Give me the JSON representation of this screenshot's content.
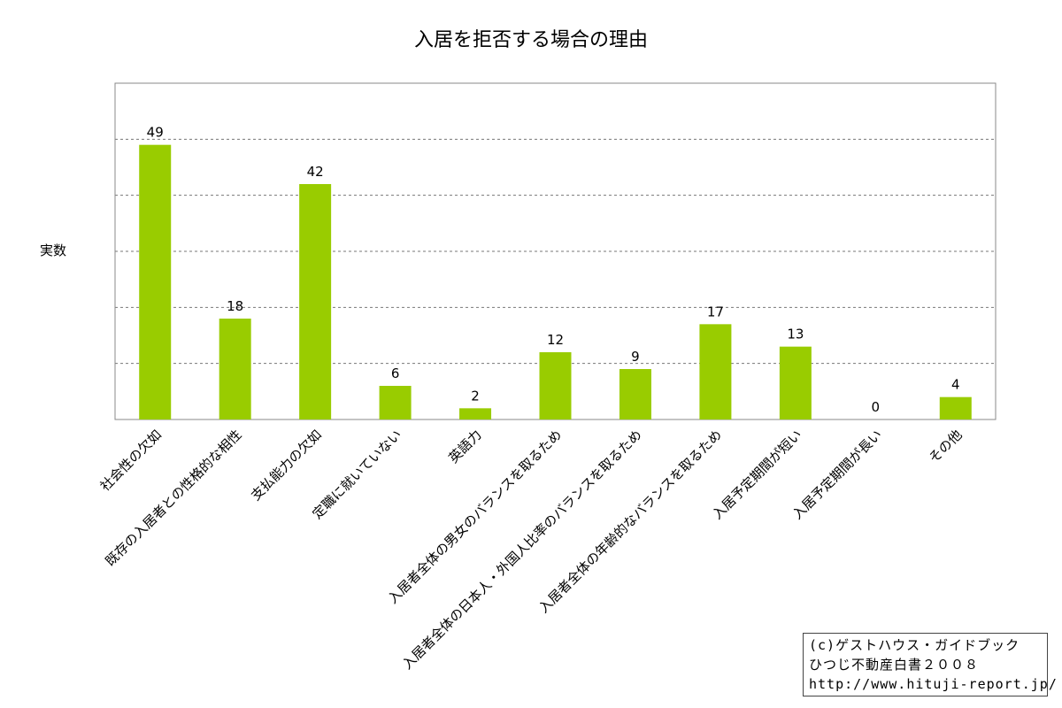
{
  "chart_data": {
    "type": "bar",
    "title": "入居を拒否する場合の理由",
    "ylabel": "実数",
    "xlabel": "",
    "ylim": [
      0,
      60
    ],
    "grid": true,
    "bar_color": "#99cc00",
    "categories": [
      "社会性の欠如",
      "既存の入居者との性格的な相性",
      "支払能力の欠如",
      "定職に就いていない",
      "英語力",
      "入居者全体の男女のバランスを取るため",
      "入居者全体の日本人・外国人比率のバランスを取るため",
      "入居者全体の年齢的なバランスを取るため",
      "入居予定期間が短い",
      "入居予定期間が長い",
      "その他"
    ],
    "values": [
      49,
      18,
      42,
      6,
      2,
      12,
      9,
      17,
      13,
      0,
      4
    ]
  },
  "credit": {
    "line1": "(c)ゲストハウス・ガイドブック",
    "line2": "ひつじ不動産白書２００８",
    "line3": "http://www.hituji-report.jp/"
  }
}
